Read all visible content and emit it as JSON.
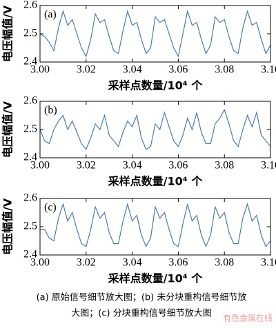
{
  "chart_data": [
    {
      "type": "line",
      "annotation": "(a)",
      "ylabel": "电压幅值/V",
      "xlabel": "采样点数量/10⁴ 个",
      "color": "#4a7aa8",
      "xlim": [
        3.0,
        3.1
      ],
      "ylim": [
        2.4,
        2.6
      ],
      "xticks": [
        {
          "value": 3.0,
          "label": "3.00"
        },
        {
          "value": 3.02,
          "label": "3.02"
        },
        {
          "value": 3.04,
          "label": "3.04"
        },
        {
          "value": 3.06,
          "label": "3.06"
        },
        {
          "value": 3.08,
          "label": "3.08"
        },
        {
          "value": 3.1,
          "label": "3.10"
        }
      ],
      "yticks": [
        2.4,
        2.5,
        2.6
      ],
      "x": [
        3.0,
        3.002,
        3.004,
        3.006,
        3.008,
        3.01,
        3.012,
        3.014,
        3.016,
        3.018,
        3.02,
        3.022,
        3.024,
        3.026,
        3.028,
        3.03,
        3.032,
        3.034,
        3.036,
        3.038,
        3.04,
        3.042,
        3.044,
        3.046,
        3.048,
        3.05,
        3.052,
        3.054,
        3.056,
        3.058,
        3.06,
        3.062,
        3.064,
        3.066,
        3.068,
        3.07,
        3.072,
        3.074,
        3.076,
        3.078,
        3.08,
        3.082,
        3.084,
        3.086,
        3.088,
        3.09,
        3.092,
        3.094,
        3.096,
        3.098,
        3.1
      ],
      "values": [
        2.5,
        2.49,
        2.47,
        2.44,
        2.52,
        2.58,
        2.53,
        2.55,
        2.5,
        2.45,
        2.42,
        2.48,
        2.57,
        2.54,
        2.55,
        2.49,
        2.44,
        2.43,
        2.51,
        2.58,
        2.53,
        2.54,
        2.48,
        2.43,
        2.45,
        2.56,
        2.54,
        2.55,
        2.5,
        2.45,
        2.42,
        2.5,
        2.58,
        2.53,
        2.54,
        2.48,
        2.43,
        2.46,
        2.56,
        2.54,
        2.55,
        2.49,
        2.44,
        2.43,
        2.52,
        2.58,
        2.53,
        2.54,
        2.48,
        2.43,
        2.46
      ]
    },
    {
      "type": "line",
      "annotation": "(b)",
      "ylabel": "电压幅值/V",
      "xlabel": "采样点数量/10⁴ 个",
      "color": "#4a7aa8",
      "xlim": [
        3.0,
        3.1
      ],
      "ylim": [
        2.4,
        2.6
      ],
      "xticks": [
        {
          "value": 3.0,
          "label": "3.00"
        },
        {
          "value": 3.02,
          "label": "3.02"
        },
        {
          "value": 3.04,
          "label": "3.04"
        },
        {
          "value": 3.06,
          "label": "3.06"
        },
        {
          "value": 3.08,
          "label": "3.08"
        },
        {
          "value": 3.1,
          "label": "3.10"
        }
      ],
      "yticks": [
        2.4,
        2.5,
        2.6
      ],
      "x": [
        3.0,
        3.002,
        3.004,
        3.006,
        3.008,
        3.01,
        3.012,
        3.014,
        3.016,
        3.018,
        3.02,
        3.022,
        3.024,
        3.026,
        3.028,
        3.03,
        3.032,
        3.034,
        3.036,
        3.038,
        3.04,
        3.042,
        3.044,
        3.046,
        3.048,
        3.05,
        3.052,
        3.054,
        3.056,
        3.058,
        3.06,
        3.062,
        3.064,
        3.066,
        3.068,
        3.07,
        3.072,
        3.074,
        3.076,
        3.078,
        3.08,
        3.082,
        3.084,
        3.086,
        3.088,
        3.09,
        3.092,
        3.094,
        3.096,
        3.098,
        3.1
      ],
      "values": [
        2.5,
        2.46,
        2.45,
        2.5,
        2.53,
        2.55,
        2.5,
        2.53,
        2.49,
        2.45,
        2.43,
        2.47,
        2.52,
        2.5,
        2.55,
        2.48,
        2.46,
        2.44,
        2.49,
        2.53,
        2.51,
        2.55,
        2.47,
        2.43,
        2.44,
        2.52,
        2.5,
        2.56,
        2.51,
        2.46,
        2.44,
        2.48,
        2.54,
        2.5,
        2.56,
        2.49,
        2.45,
        2.45,
        2.52,
        2.54,
        2.57,
        2.52,
        2.46,
        2.44,
        2.5,
        2.55,
        2.51,
        2.56,
        2.48,
        2.46,
        2.44
      ]
    },
    {
      "type": "line",
      "annotation": "(c)",
      "ylabel": "电压幅值/V",
      "xlabel": "采样点数量/10⁴ 个",
      "color": "#4a7aa8",
      "xlim": [
        3.0,
        3.1
      ],
      "ylim": [
        2.4,
        2.6
      ],
      "xticks": [
        {
          "value": 3.0,
          "label": "3.00"
        },
        {
          "value": 3.02,
          "label": "3.02"
        },
        {
          "value": 3.04,
          "label": "3.04"
        },
        {
          "value": 3.06,
          "label": "3.06"
        },
        {
          "value": 3.08,
          "label": "3.08"
        },
        {
          "value": 3.1,
          "label": "3.10"
        }
      ],
      "yticks": [
        2.4,
        2.5,
        2.6
      ],
      "x": [
        3.0,
        3.002,
        3.004,
        3.006,
        3.008,
        3.01,
        3.012,
        3.014,
        3.016,
        3.018,
        3.02,
        3.022,
        3.024,
        3.026,
        3.028,
        3.03,
        3.032,
        3.034,
        3.036,
        3.038,
        3.04,
        3.042,
        3.044,
        3.046,
        3.048,
        3.05,
        3.052,
        3.054,
        3.056,
        3.058,
        3.06,
        3.062,
        3.064,
        3.066,
        3.068,
        3.07,
        3.072,
        3.074,
        3.076,
        3.078,
        3.08,
        3.082,
        3.084,
        3.086,
        3.088,
        3.09,
        3.092,
        3.094,
        3.096,
        3.098,
        3.1
      ],
      "values": [
        2.49,
        2.49,
        2.46,
        2.45,
        2.53,
        2.58,
        2.52,
        2.55,
        2.49,
        2.44,
        2.43,
        2.49,
        2.57,
        2.53,
        2.55,
        2.48,
        2.44,
        2.44,
        2.52,
        2.58,
        2.52,
        2.54,
        2.47,
        2.43,
        2.46,
        2.57,
        2.53,
        2.55,
        2.49,
        2.44,
        2.43,
        2.51,
        2.58,
        2.52,
        2.54,
        2.47,
        2.43,
        2.47,
        2.57,
        2.53,
        2.55,
        2.48,
        2.44,
        2.44,
        2.53,
        2.58,
        2.52,
        2.54,
        2.47,
        2.43,
        2.45
      ]
    }
  ],
  "caption": [
    "(a) 原始信号细节放大图；(b) 未分块重构信号细节放",
    "大图；(c) 分块重构信号细节放大图"
  ],
  "watermark": "有色金属在线"
}
